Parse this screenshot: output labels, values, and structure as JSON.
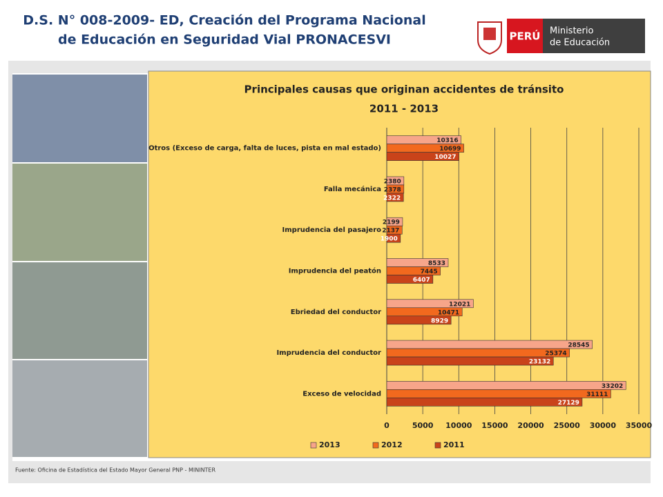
{
  "header": {
    "title_line1": "D.S. N° 008-2009- ED, Creación del Programa Nacional",
    "title_line2": "de Educación en Seguridad Vial PRONACESVI"
  },
  "logo": {
    "country": "PERÚ",
    "ministry_line1": "Ministerio",
    "ministry_line2": "de Educación"
  },
  "source": "Fuente: Oficina de Estadística del Estado Mayor General PNP - MININTER",
  "chart_data": {
    "type": "hbar",
    "title": "Principales causas que originan accidentes de tránsito",
    "subtitle": "2011 - 2013",
    "categories": [
      "Otros (Exceso de carga, falta de luces, pista en mal estado)",
      "Falla mecánica",
      "Imprudencia del pasajero",
      "Imprudencia del peatón",
      "Ebriedad del conductor",
      "Imprudencia del conductor",
      "Exceso de velocidad"
    ],
    "series": [
      {
        "name": "2013",
        "color": "#f7a58a",
        "values": [
          10316,
          2380,
          2199,
          8533,
          12021,
          28545,
          33202
        ]
      },
      {
        "name": "2012",
        "color": "#f2691e",
        "values": [
          10699,
          2378,
          2137,
          7445,
          10471,
          25374,
          31111
        ]
      },
      {
        "name": "2011",
        "color": "#c9431a",
        "values": [
          10027,
          2322,
          1900,
          6407,
          8929,
          23132,
          27129
        ]
      }
    ],
    "xlim": [
      0,
      35000
    ],
    "xticks": [
      0,
      5000,
      10000,
      15000,
      20000,
      25000,
      30000,
      35000
    ],
    "grid": true,
    "legend": "bottom"
  }
}
